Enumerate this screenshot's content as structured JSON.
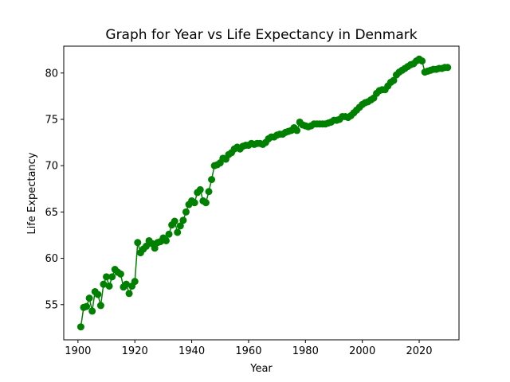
{
  "chart_data": {
    "type": "line",
    "title": "Graph for Year vs Life Expectancy in Denmark",
    "xlabel": "Year",
    "ylabel": "Life Expectancy",
    "xlim": [
      1895,
      2034
    ],
    "ylim": [
      51.2,
      82.9
    ],
    "xticks": [
      1900,
      1920,
      1940,
      1960,
      1980,
      2000,
      2020
    ],
    "yticks": [
      55,
      60,
      65,
      70,
      75,
      80
    ],
    "grid": false,
    "color": "#008000",
    "marker": "circle",
    "x": [
      1901,
      1902,
      1903,
      1904,
      1905,
      1906,
      1907,
      1908,
      1909,
      1910,
      1911,
      1912,
      1913,
      1914,
      1915,
      1916,
      1917,
      1918,
      1919,
      1920,
      1921,
      1922,
      1923,
      1924,
      1925,
      1926,
      1927,
      1928,
      1929,
      1930,
      1931,
      1932,
      1933,
      1934,
      1935,
      1936,
      1937,
      1938,
      1939,
      1940,
      1941,
      1942,
      1943,
      1944,
      1945,
      1946,
      1947,
      1948,
      1949,
      1950,
      1951,
      1952,
      1953,
      1954,
      1955,
      1956,
      1957,
      1958,
      1959,
      1960,
      1961,
      1962,
      1963,
      1964,
      1965,
      1966,
      1967,
      1968,
      1969,
      1970,
      1971,
      1972,
      1973,
      1974,
      1975,
      1976,
      1977,
      1978,
      1979,
      1980,
      1981,
      1982,
      1983,
      1984,
      1985,
      1986,
      1987,
      1988,
      1989,
      1990,
      1991,
      1992,
      1993,
      1994,
      1995,
      1996,
      1997,
      1998,
      1999,
      2000,
      2001,
      2002,
      2003,
      2004,
      2005,
      2006,
      2007,
      2008,
      2009,
      2010,
      2011,
      2012,
      2013,
      2014,
      2015,
      2016,
      2017,
      2018,
      2019,
      2020,
      2021,
      2022,
      2023,
      2024,
      2025,
      2026,
      2027,
      2028,
      2029,
      2030
    ],
    "y": [
      52.6,
      54.7,
      54.8,
      55.7,
      54.3,
      56.4,
      56.1,
      54.9,
      57.2,
      58.0,
      57.0,
      58.0,
      58.8,
      58.5,
      58.3,
      56.9,
      57.2,
      56.2,
      57.0,
      57.5,
      61.7,
      60.6,
      61.0,
      61.3,
      61.9,
      61.6,
      61.1,
      61.7,
      61.8,
      62.2,
      61.9,
      62.6,
      63.6,
      64.0,
      62.8,
      63.5,
      64.1,
      65.0,
      65.8,
      66.2,
      66.0,
      67.1,
      67.4,
      66.2,
      66.0,
      67.2,
      68.5,
      70.0,
      70.1,
      70.3,
      70.8,
      70.7,
      71.2,
      71.4,
      71.8,
      72.0,
      71.8,
      72.1,
      72.2,
      72.2,
      72.4,
      72.3,
      72.4,
      72.4,
      72.3,
      72.5,
      72.9,
      73.1,
      73.1,
      73.3,
      73.4,
      73.4,
      73.6,
      73.7,
      73.8,
      74.1,
      73.8,
      74.7,
      74.4,
      74.3,
      74.2,
      74.3,
      74.5,
      74.5,
      74.5,
      74.5,
      74.5,
      74.6,
      74.7,
      74.9,
      74.9,
      75.0,
      75.3,
      75.3,
      75.2,
      75.4,
      75.7,
      76.0,
      76.3,
      76.6,
      76.8,
      76.9,
      77.1,
      77.3,
      77.8,
      78.1,
      78.2,
      78.2,
      78.6,
      79.0,
      79.2,
      79.8,
      80.1,
      80.3,
      80.5,
      80.7,
      80.9,
      81.0,
      81.3,
      81.5,
      81.3,
      80.1,
      80.2,
      80.3,
      80.4,
      80.4,
      80.5,
      80.5,
      80.6,
      80.6
    ]
  }
}
